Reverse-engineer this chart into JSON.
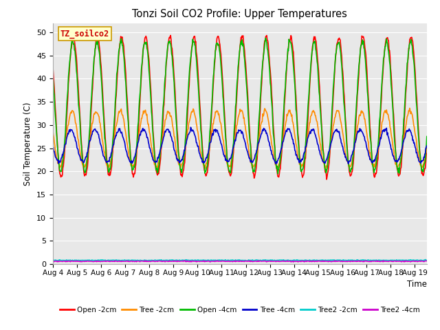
{
  "title": "Tonzi Soil CO2 Profile: Upper Temperatures",
  "xlabel": "Time",
  "ylabel": "Soil Temperature (C)",
  "ylim": [
    0,
    52
  ],
  "yticks": [
    0,
    5,
    10,
    15,
    20,
    25,
    30,
    35,
    40,
    45,
    50
  ],
  "num_days": 15.5,
  "num_points": 744,
  "colors": {
    "Open -2cm": "#ff0000",
    "Tree -2cm": "#ff8c00",
    "Open -4cm": "#00bb00",
    "Tree -4cm": "#0000cc",
    "Tree2 -2cm": "#00cccc",
    "Tree2 -4cm": "#cc00cc"
  },
  "legend_label": "TZ_soilco2",
  "legend_label_color": "#cc0000",
  "legend_label_bg": "#ffffcc",
  "legend_label_edgecolor": "#cc9900",
  "bg_color": "#e8e8e8",
  "xtick_dates": [
    "Aug 4",
    "Aug 5",
    "Aug 6",
    "Aug 7",
    "Aug 8",
    "Aug 9",
    "Aug 10",
    "Aug 11",
    "Aug 12",
    "Aug 13",
    "Aug 14",
    "Aug 15",
    "Aug 16",
    "Aug 17",
    "Aug 18",
    "Aug 19"
  ],
  "linewidth": 1.2,
  "open2_baseline": 34,
  "open2_amplitude": 15,
  "tree2cm_baseline": 27,
  "tree2cm_amplitude": 6,
  "open4_baseline": 34,
  "open4_amplitude": 13,
  "tree4_baseline": 25.5,
  "tree4_amplitude": 3.5
}
